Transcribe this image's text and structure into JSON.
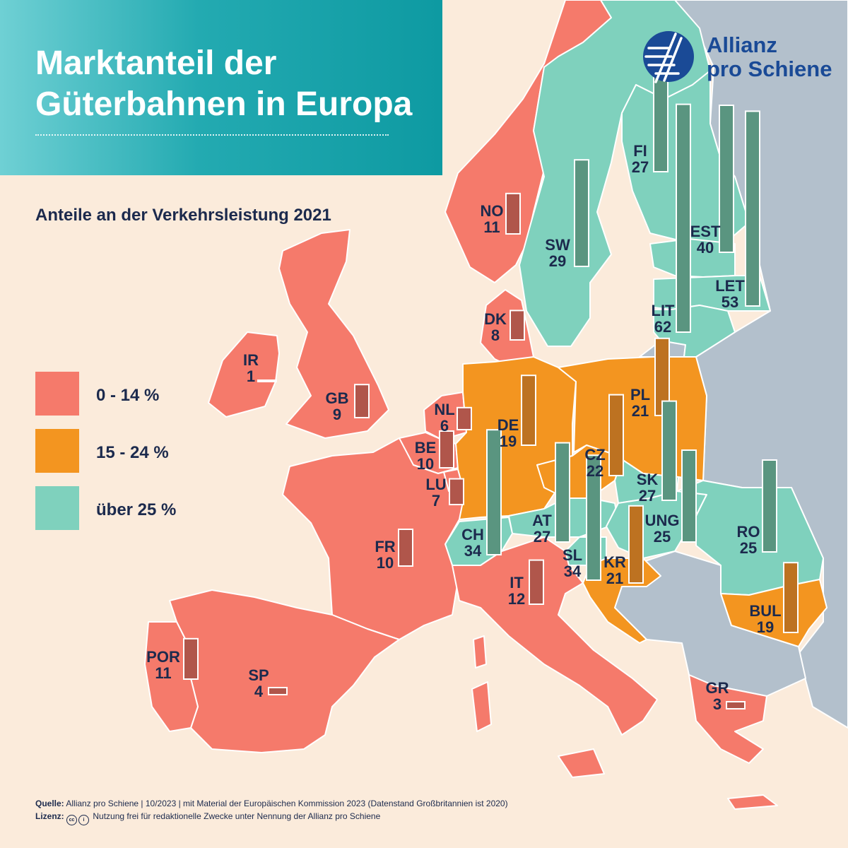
{
  "title": {
    "line1": "Marktanteil der",
    "line2": "Güterbahnen in Europa"
  },
  "subtitle": "Anteile an der Verkehrsleistung 2021",
  "brand": {
    "line1": "Allianz",
    "line2": "pro Schiene"
  },
  "colors": {
    "low": "#f57a6b",
    "mid": "#f39520",
    "high": "#7fd1bd",
    "bar_low": "#b0564b",
    "bar_mid": "#bd7221",
    "bar_high": "#5a9580",
    "water": "#fbebdb",
    "other": "#b3c0cc",
    "text": "#1c2a4d",
    "logo": "#1a4a96"
  },
  "legend": [
    {
      "label": "0 - 14 %",
      "category": "low"
    },
    {
      "label": "15 - 24 %",
      "category": "mid"
    },
    {
      "label": "über 25 %",
      "category": "high"
    }
  ],
  "chart_data": {
    "type": "map-bar",
    "title": "Marktanteil der Güterbahnen in Europa",
    "subtitle": "Anteile an der Verkehrsleistung 2021",
    "unit": "%",
    "countries": [
      {
        "code": "NO",
        "value": 11,
        "category": "low"
      },
      {
        "code": "SW",
        "value": 29,
        "category": "high"
      },
      {
        "code": "FI",
        "value": 27,
        "category": "high"
      },
      {
        "code": "EST",
        "value": 40,
        "category": "high"
      },
      {
        "code": "LET",
        "value": 53,
        "category": "high"
      },
      {
        "code": "LIT",
        "value": 62,
        "category": "high"
      },
      {
        "code": "DK",
        "value": 8,
        "category": "low"
      },
      {
        "code": "IR",
        "value": 1,
        "category": "low"
      },
      {
        "code": "GB",
        "value": 9,
        "category": "low"
      },
      {
        "code": "NL",
        "value": 6,
        "category": "low"
      },
      {
        "code": "BE",
        "value": 10,
        "category": "low"
      },
      {
        "code": "LU",
        "value": 7,
        "category": "low"
      },
      {
        "code": "DE",
        "value": 19,
        "category": "mid"
      },
      {
        "code": "PL",
        "value": 21,
        "category": "mid"
      },
      {
        "code": "CZ",
        "value": 22,
        "category": "mid"
      },
      {
        "code": "SK",
        "value": 27,
        "category": "high"
      },
      {
        "code": "AT",
        "value": 27,
        "category": "high"
      },
      {
        "code": "CH",
        "value": 34,
        "category": "high"
      },
      {
        "code": "UNG",
        "value": 25,
        "category": "high"
      },
      {
        "code": "RO",
        "value": 25,
        "category": "high"
      },
      {
        "code": "SL",
        "value": 34,
        "category": "high"
      },
      {
        "code": "KR",
        "value": 21,
        "category": "mid"
      },
      {
        "code": "FR",
        "value": 10,
        "category": "low"
      },
      {
        "code": "IT",
        "value": 12,
        "category": "low"
      },
      {
        "code": "BUL",
        "value": 19,
        "category": "mid"
      },
      {
        "code": "POR",
        "value": 11,
        "category": "low"
      },
      {
        "code": "SP",
        "value": 4,
        "category": "low"
      },
      {
        "code": "GR",
        "value": 3,
        "category": "low"
      }
    ]
  },
  "footer": {
    "source_label": "Quelle:",
    "source_text": "Allianz pro Schiene | 10/2023 | mit Material der Europäischen Kommission 2023 (Datenstand Großbritannien ist 2020)",
    "license_label": "Lizenz:",
    "license_icon_cc": "cc",
    "license_icon_by": "i",
    "license_text": "Nutzung frei für redaktionelle Zwecke unter Nennung der Allianz pro Schiene"
  }
}
